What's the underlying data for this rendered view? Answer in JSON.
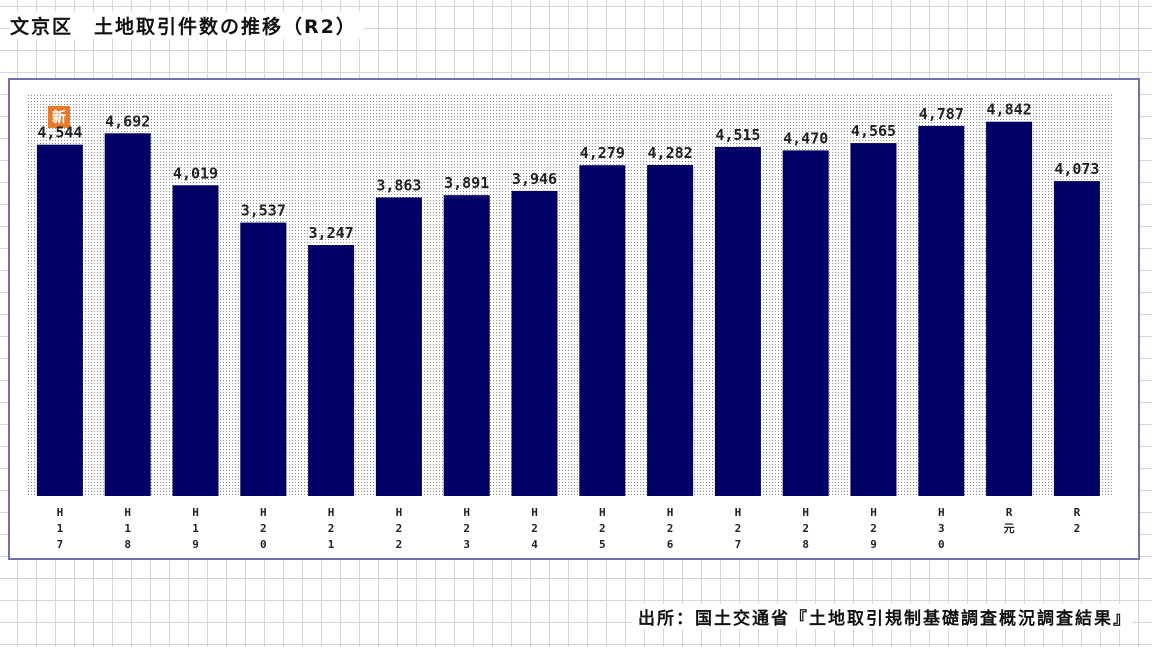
{
  "page": {
    "title": "文京区　土地取引件数の推移（R2）",
    "source": "出所：国土交通省『土地取引規制基礎調査概況調査結果』",
    "badge_text": "新"
  },
  "colors": {
    "bar": "#000066",
    "frame_border": "#6e72b0",
    "badge": "#e87a2c",
    "plot_dots": "#8c8c8c"
  },
  "chart_data": {
    "type": "bar",
    "title": "",
    "xlabel": "",
    "ylabel": "",
    "categories": [
      "H17",
      "H18",
      "H19",
      "H20",
      "H21",
      "H22",
      "H23",
      "H24",
      "H25",
      "H26",
      "H27",
      "H28",
      "H29",
      "H30",
      "R元",
      "R2"
    ],
    "tick_labels": [
      [
        "H",
        "1",
        "7"
      ],
      [
        "H",
        "1",
        "8"
      ],
      [
        "H",
        "1",
        "9"
      ],
      [
        "H",
        "2",
        "0"
      ],
      [
        "H",
        "2",
        "1"
      ],
      [
        "H",
        "2",
        "2"
      ],
      [
        "H",
        "2",
        "3"
      ],
      [
        "H",
        "2",
        "4"
      ],
      [
        "H",
        "2",
        "5"
      ],
      [
        "H",
        "2",
        "6"
      ],
      [
        "H",
        "2",
        "7"
      ],
      [
        "H",
        "2",
        "8"
      ],
      [
        "H",
        "2",
        "9"
      ],
      [
        "H",
        "3",
        "0"
      ],
      [
        "R",
        "元"
      ],
      [
        "R",
        "2"
      ]
    ],
    "values": [
      4544,
      4692,
      4019,
      3537,
      3247,
      3863,
      3891,
      3946,
      4279,
      4282,
      4515,
      4470,
      4565,
      4787,
      4842,
      4073
    ],
    "value_labels": [
      "4,544",
      "4,692",
      "4,019",
      "3,537",
      "3,247",
      "3,863",
      "3,891",
      "3,946",
      "4,279",
      "4,282",
      "4,515",
      "4,470",
      "4,565",
      "4,787",
      "4,842",
      "4,073"
    ],
    "ylim": [
      0,
      5200
    ],
    "grid": false,
    "legend": "none"
  }
}
